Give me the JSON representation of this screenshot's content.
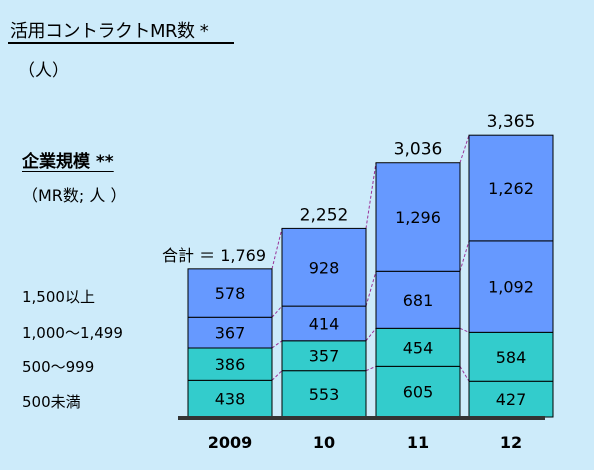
{
  "header": {
    "title": "活用コントラクトMR数 *",
    "unit": "（人）",
    "segment_title": "企業規模 **",
    "segment_unit": "（MR数; 人 ）",
    "total_prefix": "合計 ＝"
  },
  "segments": [
    "1,500以上",
    "1,000～1,499",
    "500～999",
    "500未満"
  ],
  "chart_data": {
    "type": "bar",
    "stacked": true,
    "categories": [
      "2009",
      "10",
      "11",
      "12"
    ],
    "series": [
      {
        "name": "500未満",
        "values": [
          438,
          553,
          605,
          427
        ],
        "color": "#33cccc"
      },
      {
        "name": "500～999",
        "values": [
          386,
          357,
          454,
          584
        ],
        "color": "#33cccc"
      },
      {
        "name": "1,000～1,499",
        "values": [
          367,
          414,
          681,
          1092
        ],
        "color": "#6699ff"
      },
      {
        "name": "1,500以上",
        "values": [
          578,
          928,
          1296,
          1262
        ],
        "color": "#6699ff"
      }
    ],
    "totals": [
      1769,
      2252,
      3036,
      3365
    ],
    "total_labels": [
      "1,769",
      "2,252",
      "3,036",
      "3,365"
    ],
    "connector_color": "#993399",
    "baseline_color": "#333333"
  }
}
